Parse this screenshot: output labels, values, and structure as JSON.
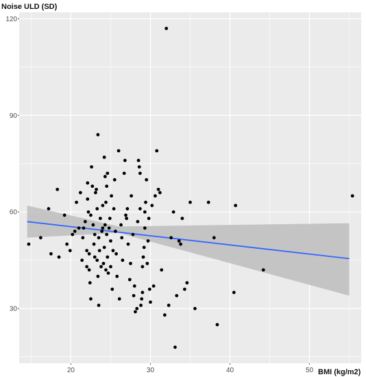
{
  "chart_data": {
    "type": "scatter",
    "title": "",
    "ylabel": "Noise ULD (SD)",
    "xlabel": "BMI (kg/m2)",
    "xlim": [
      13.5,
      56.5
    ],
    "ylim": [
      13,
      122
    ],
    "x_ticks": [
      20,
      30,
      40,
      50
    ],
    "y_ticks": [
      30,
      60,
      90,
      120
    ],
    "grid": true,
    "legend": "none",
    "colors": {
      "panel": "#ebebeb",
      "grid": "#ffffff",
      "points": "#000000",
      "line": "#3366ff",
      "band": "#bdbdbd"
    },
    "fit": {
      "x": [
        14.5,
        55
      ],
      "y": [
        57,
        45.5
      ],
      "ci_upper": [
        62,
        56.5
      ],
      "ci_lower": [
        52,
        34
      ],
      "ci_x_upper": [
        14.5,
        26,
        55
      ],
      "ci_y_upper": [
        62,
        55.5,
        56.5
      ],
      "ci_x_lower": [
        14.5,
        26,
        55
      ],
      "ci_y_lower": [
        52,
        53.5,
        34
      ]
    },
    "points": [
      [
        14.7,
        50
      ],
      [
        16.2,
        52
      ],
      [
        17.2,
        61
      ],
      [
        17.5,
        47
      ],
      [
        18.3,
        67
      ],
      [
        18.5,
        46
      ],
      [
        19.2,
        59
      ],
      [
        19.5,
        50
      ],
      [
        19.9,
        48
      ],
      [
        20.2,
        53
      ],
      [
        20.5,
        54
      ],
      [
        20.7,
        63
      ],
      [
        21.0,
        55
      ],
      [
        21.2,
        66
      ],
      [
        21.4,
        45
      ],
      [
        21.5,
        52
      ],
      [
        21.6,
        55
      ],
      [
        21.8,
        57
      ],
      [
        22.0,
        43
      ],
      [
        22.0,
        48
      ],
      [
        22.1,
        64
      ],
      [
        22.1,
        69
      ],
      [
        22.2,
        60
      ],
      [
        22.3,
        47
      ],
      [
        22.3,
        42
      ],
      [
        22.4,
        38
      ],
      [
        22.5,
        59
      ],
      [
        22.5,
        33
      ],
      [
        22.6,
        74
      ],
      [
        22.7,
        68
      ],
      [
        22.8,
        56
      ],
      [
        22.9,
        50
      ],
      [
        23.0,
        46
      ],
      [
        23.0,
        53
      ],
      [
        23.1,
        66
      ],
      [
        23.2,
        67
      ],
      [
        23.3,
        61
      ],
      [
        23.3,
        45
      ],
      [
        23.4,
        84
      ],
      [
        23.4,
        40
      ],
      [
        23.5,
        31
      ],
      [
        23.5,
        52
      ],
      [
        23.6,
        48
      ],
      [
        23.7,
        58
      ],
      [
        23.8,
        43
      ],
      [
        23.9,
        54
      ],
      [
        24.0,
        62
      ],
      [
        24.0,
        55
      ],
      [
        24.1,
        44
      ],
      [
        24.2,
        77
      ],
      [
        24.2,
        49
      ],
      [
        24.3,
        56
      ],
      [
        24.3,
        71
      ],
      [
        24.4,
        63
      ],
      [
        24.4,
        42
      ],
      [
        24.5,
        68
      ],
      [
        24.5,
        53
      ],
      [
        24.6,
        46
      ],
      [
        24.6,
        72
      ],
      [
        24.7,
        41
      ],
      [
        24.8,
        55
      ],
      [
        24.9,
        58
      ],
      [
        25.0,
        43
      ],
      [
        25.0,
        51
      ],
      [
        25.1,
        65
      ],
      [
        25.2,
        36
      ],
      [
        25.3,
        48
      ],
      [
        25.4,
        61
      ],
      [
        25.5,
        70
      ],
      [
        25.6,
        54
      ],
      [
        25.7,
        47
      ],
      [
        25.8,
        40
      ],
      [
        26.0,
        79
      ],
      [
        26.1,
        33
      ],
      [
        26.3,
        56
      ],
      [
        26.4,
        52
      ],
      [
        26.5,
        45
      ],
      [
        26.7,
        72
      ],
      [
        26.8,
        76
      ],
      [
        26.9,
        59
      ],
      [
        27.0,
        58
      ],
      [
        27.1,
        61
      ],
      [
        27.2,
        50
      ],
      [
        27.4,
        39
      ],
      [
        27.5,
        44
      ],
      [
        27.6,
        65
      ],
      [
        27.8,
        53
      ],
      [
        27.9,
        34
      ],
      [
        28.0,
        37
      ],
      [
        28.1,
        29
      ],
      [
        28.3,
        30
      ],
      [
        28.4,
        57
      ],
      [
        28.5,
        76
      ],
      [
        28.6,
        74
      ],
      [
        28.7,
        72
      ],
      [
        28.7,
        61
      ],
      [
        28.8,
        31
      ],
      [
        28.9,
        33
      ],
      [
        29.0,
        35
      ],
      [
        29.0,
        43
      ],
      [
        29.1,
        46
      ],
      [
        29.2,
        49
      ],
      [
        29.3,
        55
      ],
      [
        29.3,
        60
      ],
      [
        29.4,
        63
      ],
      [
        29.5,
        70
      ],
      [
        29.6,
        44
      ],
      [
        29.7,
        51
      ],
      [
        29.8,
        58
      ],
      [
        29.9,
        36
      ],
      [
        30.0,
        32
      ],
      [
        30.2,
        62
      ],
      [
        30.4,
        37
      ],
      [
        30.6,
        65
      ],
      [
        30.8,
        79
      ],
      [
        31.0,
        67
      ],
      [
        31.2,
        66
      ],
      [
        31.4,
        42
      ],
      [
        31.8,
        28
      ],
      [
        32.0,
        117
      ],
      [
        32.3,
        31
      ],
      [
        32.6,
        52
      ],
      [
        32.9,
        60
      ],
      [
        33.1,
        18
      ],
      [
        33.3,
        34
      ],
      [
        33.6,
        51
      ],
      [
        33.8,
        50
      ],
      [
        34.0,
        58
      ],
      [
        34.3,
        36
      ],
      [
        34.6,
        38
      ],
      [
        35.0,
        63
      ],
      [
        35.6,
        30
      ],
      [
        37.3,
        63
      ],
      [
        38.0,
        52
      ],
      [
        38.4,
        25
      ],
      [
        40.5,
        35
      ],
      [
        40.7,
        62
      ],
      [
        44.2,
        42
      ],
      [
        55.4,
        65
      ]
    ]
  }
}
